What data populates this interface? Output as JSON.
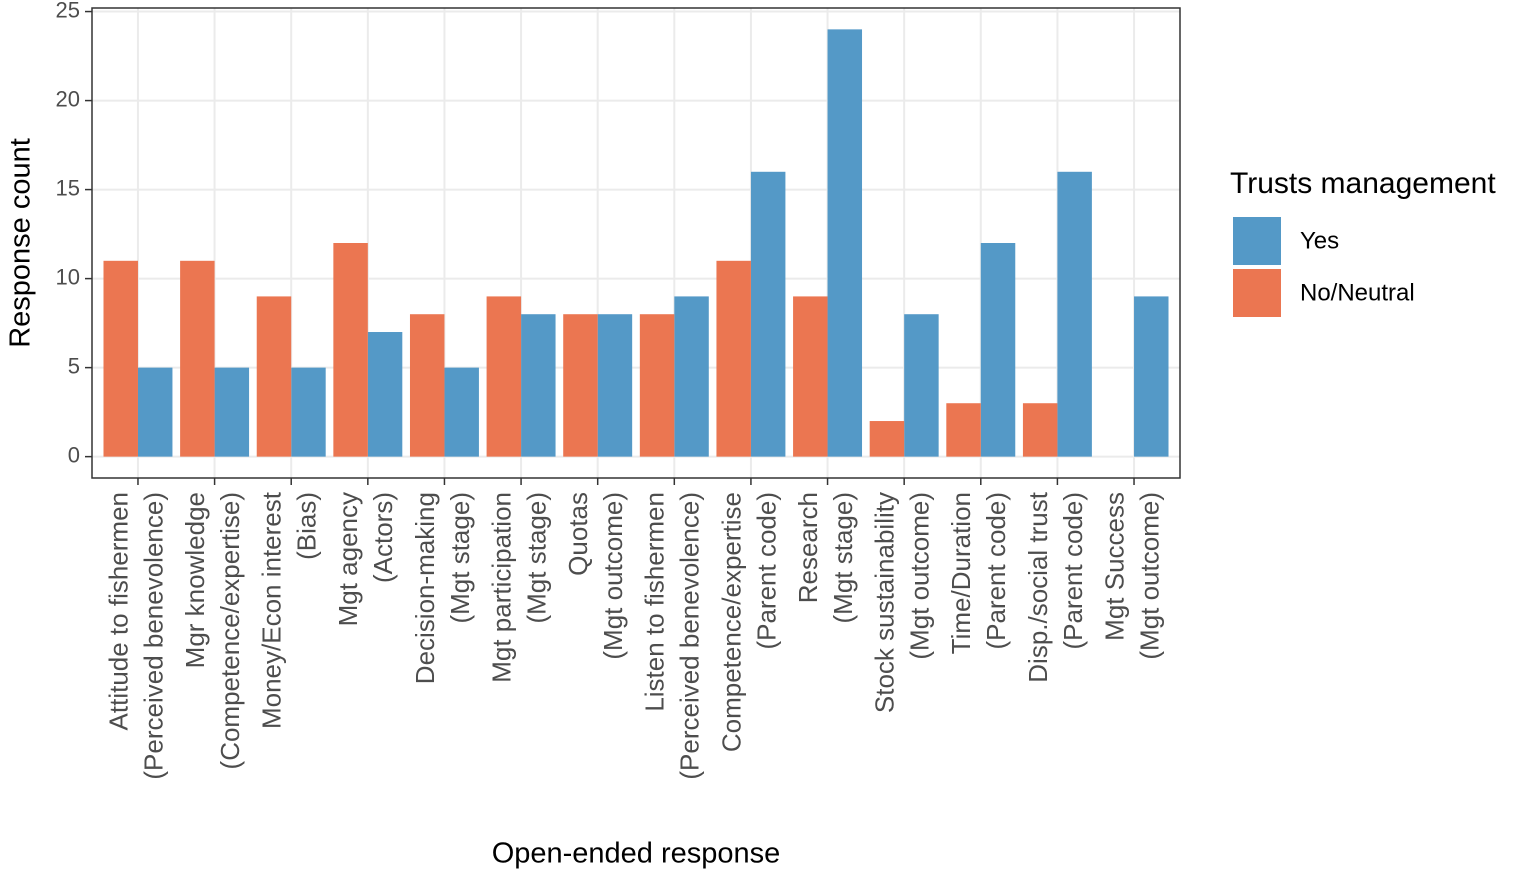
{
  "chart_data": {
    "type": "bar",
    "x_label": "Open-ended response",
    "y_label": "Response count",
    "legend_title": "Trusts management",
    "categories": [
      [
        "Attitude to fishermen",
        "(Perceived benevolence)"
      ],
      [
        "Mgr knowledge",
        "(Competence/expertise)"
      ],
      [
        "Money/Econ interest",
        "(Bias)"
      ],
      [
        "Mgt agency",
        "(Actors)"
      ],
      [
        "Decision-making",
        "(Mgt stage)"
      ],
      [
        "Mgt participation",
        "(Mgt stage)"
      ],
      [
        "Quotas",
        "(Mgt outcome)"
      ],
      [
        "Listen to fishermen",
        "(Perceived benevolence)"
      ],
      [
        "Competence/expertise",
        "(Parent code)"
      ],
      [
        "Research",
        "(Mgt stage)"
      ],
      [
        "Stock sustainability",
        "(Mgt outcome)"
      ],
      [
        "Time/Duration",
        "(Parent code)"
      ],
      [
        "Disp./social trust",
        "(Parent code)"
      ],
      [
        "Mgt Success",
        "(Mgt outcome)"
      ]
    ],
    "series": [
      {
        "name": "Yes",
        "color": "#5499c7",
        "values": [
          5,
          5,
          5,
          7,
          5,
          8,
          8,
          9,
          16,
          24,
          8,
          12,
          16,
          9
        ]
      },
      {
        "name": "No/Neutral",
        "color": "#eb7651",
        "values": [
          11,
          11,
          9,
          12,
          8,
          9,
          8,
          8,
          11,
          9,
          2,
          3,
          3,
          0
        ]
      }
    ],
    "ylim": [
      -1.2,
      25.2
    ],
    "yticks": [
      0,
      5,
      10,
      15,
      20,
      25
    ],
    "grid": true
  }
}
